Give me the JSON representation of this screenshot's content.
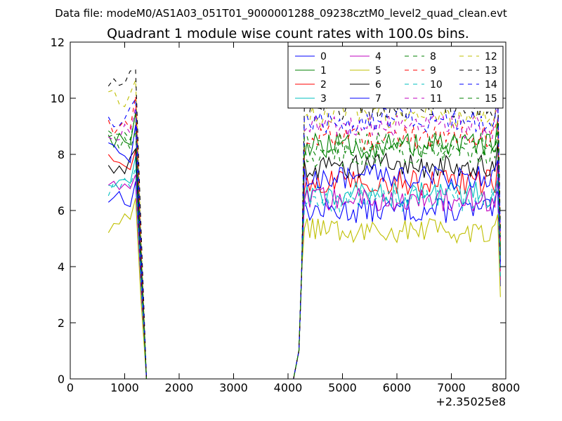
{
  "figure": {
    "suptitle": "Data file: modeM0/AS1A03_051T01_9000001288_09238cztM0_level2_quad_clean.evt"
  },
  "chart_data": {
    "type": "line",
    "title": "Quadrant 1 module wise count rates with 100.0s bins.",
    "xlabel": "",
    "ylabel": "",
    "xlim": [
      0,
      8000
    ],
    "ylim": [
      0,
      12
    ],
    "x_offset_label": "+2.35025e8",
    "x_ticks": [
      0,
      1000,
      2000,
      3000,
      4000,
      5000,
      6000,
      7000,
      8000
    ],
    "y_ticks": [
      0,
      2,
      4,
      6,
      8,
      10,
      12
    ],
    "grid": false,
    "legend": {
      "position": "top-right",
      "columns": 4
    },
    "series": [
      {
        "name": "0",
        "color": "#0000ff",
        "dash": "solid",
        "seg1": 6.5,
        "seg2": 6.0
      },
      {
        "name": "1",
        "color": "#008000",
        "dash": "solid",
        "seg1": 8.6,
        "seg2": 8.3
      },
      {
        "name": "2",
        "color": "#ff0000",
        "dash": "solid",
        "seg1": 7.6,
        "seg2": 7.0
      },
      {
        "name": "3",
        "color": "#00bfbf",
        "dash": "solid",
        "seg1": 7.0,
        "seg2": 6.6
      },
      {
        "name": "4",
        "color": "#bf00bf",
        "dash": "solid",
        "seg1": 6.7,
        "seg2": 6.4
      },
      {
        "name": "5",
        "color": "#bfbf00",
        "dash": "solid",
        "seg1": 5.5,
        "seg2": 5.3
      },
      {
        "name": "6",
        "color": "#000000",
        "dash": "solid",
        "seg1": 7.6,
        "seg2": 7.6
      },
      {
        "name": "7",
        "color": "#0000ff",
        "dash": "solid",
        "seg1": 8.1,
        "seg2": 7.2
      },
      {
        "name": "8",
        "color": "#008000",
        "dash": "dashed",
        "seg1": 8.8,
        "seg2": 8.0
      },
      {
        "name": "9",
        "color": "#ff0000",
        "dash": "dashed",
        "seg1": 9.1,
        "seg2": 8.6
      },
      {
        "name": "10",
        "color": "#00bfbf",
        "dash": "dashed",
        "seg1": 6.9,
        "seg2": 6.4
      },
      {
        "name": "11",
        "color": "#bf00bf",
        "dash": "dashed",
        "seg1": 8.7,
        "seg2": 9.0
      },
      {
        "name": "12",
        "color": "#bfbf00",
        "dash": "dashed",
        "seg1": 10.0,
        "seg2": 9.4
      },
      {
        "name": "13",
        "color": "#000000",
        "dash": "dashed",
        "seg1": 10.7,
        "seg2": 9.7
      },
      {
        "name": "14",
        "color": "#0000ff",
        "dash": "dashed",
        "seg1": 9.3,
        "seg2": 9.2
      },
      {
        "name": "15",
        "color": "#008000",
        "dash": "dashed",
        "seg1": 8.5,
        "seg2": 8.4
      }
    ],
    "time_profile": {
      "segment1_x": [
        700,
        800,
        900,
        1000,
        1100,
        1200,
        1300,
        1400
      ],
      "gap_x": [
        1400,
        4100
      ],
      "segment2_start": 4100,
      "segment2_end": 7900,
      "segment2_step": 50
    }
  }
}
